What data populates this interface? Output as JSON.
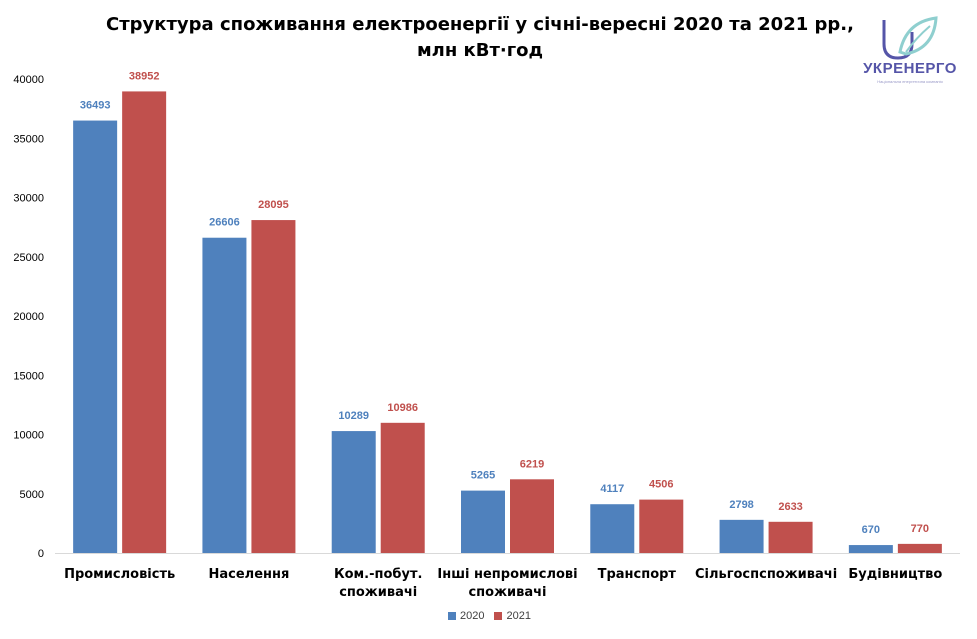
{
  "chart_data": {
    "type": "bar",
    "title_line1": "Структура споживання електроенергії у січні-вересні 2020 та 2021 рр.,",
    "title_line2": "млн кВт·год",
    "categories": [
      [
        "Промисловість"
      ],
      [
        "Населення"
      ],
      [
        "Ком.-побут.",
        "споживачі"
      ],
      [
        "Інші непромислові",
        "споживачі"
      ],
      [
        "Транспорт"
      ],
      [
        "Сільгоспспоживачі"
      ],
      [
        "Будівництво"
      ]
    ],
    "series": [
      {
        "name": "2020",
        "color": "#4f81bd",
        "label_color": "#4f81bd",
        "values": [
          36493,
          26606,
          10289,
          5265,
          4117,
          2798,
          670
        ]
      },
      {
        "name": "2021",
        "color": "#c0504d",
        "label_color": "#c0504d",
        "values": [
          38952,
          28095,
          10986,
          6219,
          4506,
          2633,
          770
        ]
      }
    ],
    "ylim": [
      0,
      40000
    ],
    "yticks": [
      0,
      5000,
      10000,
      15000,
      20000,
      25000,
      30000,
      35000,
      40000
    ],
    "grid": false,
    "legend_position": "bottom-center"
  },
  "logo": {
    "name": "УКРЕНЕРГО",
    "subtitle": "Національна енергетична компанія",
    "color": "#5555a8",
    "accent": "#8fcfcf"
  }
}
